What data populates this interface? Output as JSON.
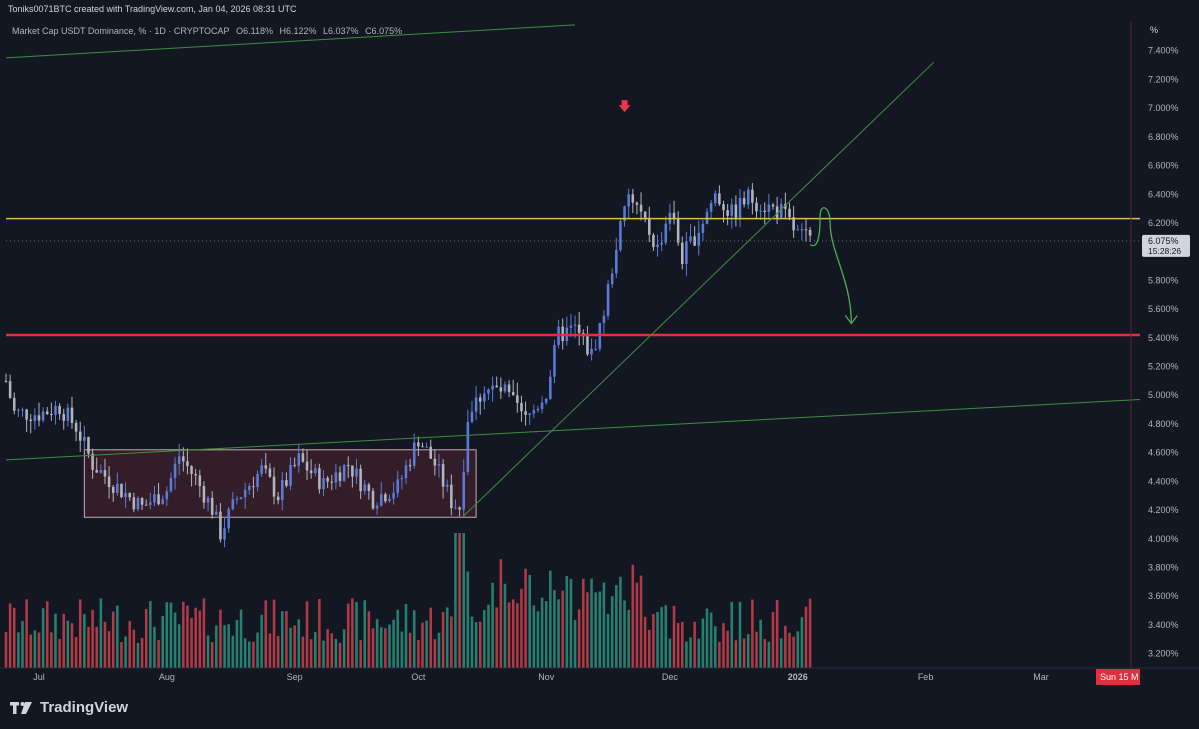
{
  "header": {
    "credit": "Toniks0071BTC created with TradingView.com, Jan 04, 2026 08:31 UTC",
    "symbol": "Market Cap USDT Dominance, % · 1D · CRYPTOCAP",
    "open": "O6.118%",
    "high": "H6.122%",
    "low": "L6.037%",
    "close": "C6.075%"
  },
  "brand": {
    "name": "TradingView",
    "icon": "tradingview-logo-icon"
  },
  "colors": {
    "background": "#131722",
    "up_candle": "#5b7bd6",
    "down_candle": "#b2b5be",
    "up_volume": "#26806f",
    "down_volume": "#b03a45",
    "yellow_line": "#d6c14a",
    "red_line": "#e03040",
    "green_line": "#3f8f3f",
    "arrow_green": "#4caf50",
    "arrow_red": "#e53945",
    "range_box": "#5a2530"
  },
  "chart_data": {
    "type": "candlestick",
    "y_axis_unit": "%",
    "ylim": [
      3.1,
      7.6
    ],
    "y_ticks": [
      {
        "v": 7.4,
        "label": "7.400%"
      },
      {
        "v": 7.2,
        "label": "7.200%"
      },
      {
        "v": 7.0,
        "label": "7.000%"
      },
      {
        "v": 6.8,
        "label": "6.800%"
      },
      {
        "v": 6.6,
        "label": "6.600%"
      },
      {
        "v": 6.4,
        "label": "6.400%"
      },
      {
        "v": 6.2,
        "label": "6.200%"
      },
      {
        "v": 5.8,
        "label": "5.800%"
      },
      {
        "v": 5.6,
        "label": "5.600%"
      },
      {
        "v": 5.4,
        "label": "5.400%"
      },
      {
        "v": 5.2,
        "label": "5.200%"
      },
      {
        "v": 5.0,
        "label": "5.000%"
      },
      {
        "v": 4.8,
        "label": "4.800%"
      },
      {
        "v": 4.6,
        "label": "4.600%"
      },
      {
        "v": 4.4,
        "label": "4.400%"
      },
      {
        "v": 4.2,
        "label": "4.200%"
      },
      {
        "v": 4.0,
        "label": "4.000%"
      },
      {
        "v": 3.8,
        "label": "3.800%"
      },
      {
        "v": 3.6,
        "label": "3.600%"
      },
      {
        "v": 3.4,
        "label": "3.400%"
      },
      {
        "v": 3.2,
        "label": "3.200%"
      }
    ],
    "x_range": [
      "2025-06-23",
      "2026-03-25"
    ],
    "x_ticks": [
      {
        "date": "2025-07-01",
        "label": "Jul"
      },
      {
        "date": "2025-08-01",
        "label": "Aug"
      },
      {
        "date": "2025-09-01",
        "label": "Sep"
      },
      {
        "date": "2025-10-01",
        "label": "Oct"
      },
      {
        "date": "2025-11-01",
        "label": "Nov"
      },
      {
        "date": "2025-12-01",
        "label": "Dec"
      },
      {
        "date": "2026-01-01",
        "label": "2026",
        "bold": true
      },
      {
        "date": "2026-02-01",
        "label": "Feb"
      },
      {
        "date": "2026-03-01",
        "label": "Mar"
      }
    ],
    "last_price": {
      "value": 6.075,
      "label": "6.075%",
      "countdown": "15:28:26"
    },
    "date_marker": {
      "date": "2026-03-15",
      "label": "Sun 15 M"
    },
    "y_axis_header": "%",
    "daily_closes": [
      {
        "date": "2025-06-23",
        "close": 5.1
      },
      {
        "date": "2025-06-25",
        "close": 4.88
      },
      {
        "date": "2025-07-01",
        "close": 4.87
      },
      {
        "date": "2025-07-06",
        "close": 4.92
      },
      {
        "date": "2025-07-10",
        "close": 4.78
      },
      {
        "date": "2025-07-14",
        "close": 4.52
      },
      {
        "date": "2025-07-20",
        "close": 4.36
      },
      {
        "date": "2025-07-26",
        "close": 4.22
      },
      {
        "date": "2025-08-01",
        "close": 4.34
      },
      {
        "date": "2025-08-04",
        "close": 4.58
      },
      {
        "date": "2025-08-08",
        "close": 4.42
      },
      {
        "date": "2025-08-12",
        "close": 4.21
      },
      {
        "date": "2025-08-14",
        "close": 4.04
      },
      {
        "date": "2025-08-18",
        "close": 4.28
      },
      {
        "date": "2025-08-24",
        "close": 4.48
      },
      {
        "date": "2025-08-28",
        "close": 4.3
      },
      {
        "date": "2025-09-02",
        "close": 4.55
      },
      {
        "date": "2025-09-08",
        "close": 4.38
      },
      {
        "date": "2025-09-14",
        "close": 4.52
      },
      {
        "date": "2025-09-20",
        "close": 4.28
      },
      {
        "date": "2025-09-26",
        "close": 4.36
      },
      {
        "date": "2025-10-01",
        "close": 4.7
      },
      {
        "date": "2025-10-05",
        "close": 4.52
      },
      {
        "date": "2025-10-09",
        "close": 4.26
      },
      {
        "date": "2025-10-11",
        "close": 4.22
      },
      {
        "date": "2025-10-13",
        "close": 4.85
      },
      {
        "date": "2025-10-17",
        "close": 5.05
      },
      {
        "date": "2025-10-22",
        "close": 5.02
      },
      {
        "date": "2025-10-27",
        "close": 4.82
      },
      {
        "date": "2025-11-01",
        "close": 5.02
      },
      {
        "date": "2025-11-04",
        "close": 5.42
      },
      {
        "date": "2025-11-08",
        "close": 5.46
      },
      {
        "date": "2025-11-12",
        "close": 5.28
      },
      {
        "date": "2025-11-15",
        "close": 5.58
      },
      {
        "date": "2025-11-18",
        "close": 6.05
      },
      {
        "date": "2025-11-21",
        "close": 6.38
      },
      {
        "date": "2025-11-24",
        "close": 6.26
      },
      {
        "date": "2025-11-28",
        "close": 6.02
      },
      {
        "date": "2025-12-01",
        "close": 6.3
      },
      {
        "date": "2025-12-04",
        "close": 5.96
      },
      {
        "date": "2025-12-08",
        "close": 6.16
      },
      {
        "date": "2025-12-12",
        "close": 6.4
      },
      {
        "date": "2025-12-16",
        "close": 6.26
      },
      {
        "date": "2025-12-20",
        "close": 6.38
      },
      {
        "date": "2025-12-24",
        "close": 6.32
      },
      {
        "date": "2025-12-28",
        "close": 6.28
      },
      {
        "date": "2026-01-01",
        "close": 6.12
      },
      {
        "date": "2026-01-04",
        "close": 6.075
      }
    ],
    "levels": [
      {
        "name": "",
        "value": 6.23,
        "color": "yellow"
      },
      {
        "name": "",
        "value": 5.42,
        "color": "red"
      }
    ],
    "range_box": {
      "start": "2025-07-12",
      "end": "2025-10-15",
      "low": 4.15,
      "high": 4.62
    },
    "trendlines": [
      {
        "from": {
          "date": "2025-06-23",
          "value": 7.35
        },
        "to": {
          "date": "2025-11-08",
          "value": 7.58
        }
      },
      {
        "from": {
          "date": "2025-06-23",
          "value": 4.55
        },
        "to": {
          "date": "2026-03-25",
          "value": 4.97
        }
      },
      {
        "from": {
          "date": "2025-10-12",
          "value": 4.16
        },
        "to": {
          "date": "2026-02-03",
          "value": 7.32
        }
      }
    ],
    "annotations": [
      {
        "type": "arrow-down",
        "color": "red",
        "date": "2025-11-20",
        "value": 7.0
      },
      {
        "type": "projection-arrow",
        "color": "green",
        "from": {
          "date": "2026-01-04",
          "value": 6.05
        },
        "to": {
          "date": "2026-01-14",
          "value": 5.5
        }
      }
    ]
  }
}
